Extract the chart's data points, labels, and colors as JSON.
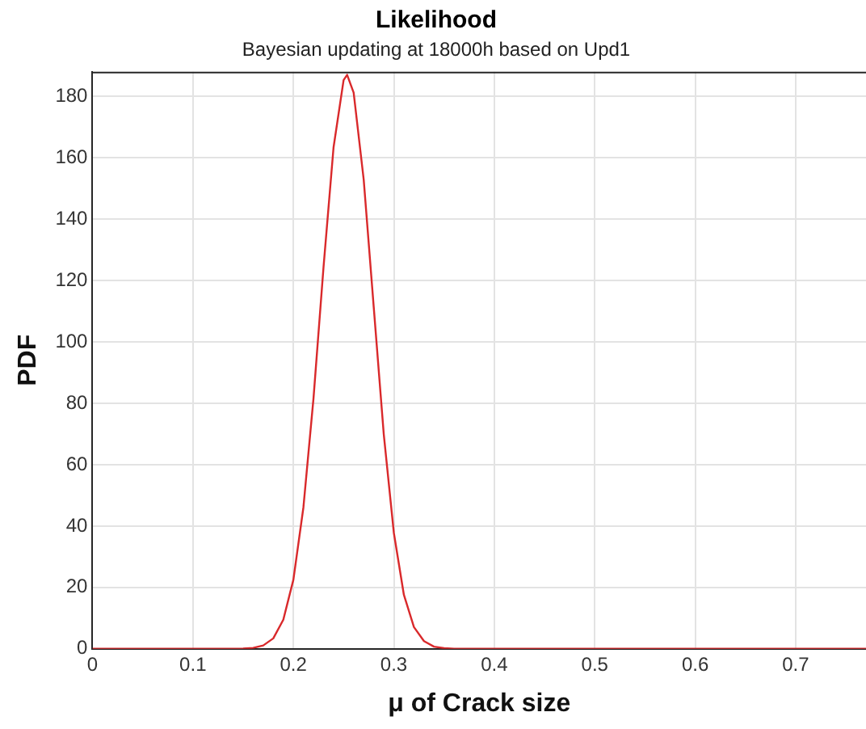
{
  "chart_data": {
    "type": "line",
    "title": "Likelihood",
    "subtitle": "Bayesian updating at 18000h based on Upd1",
    "xlabel": "μ of Crack size",
    "ylabel": "PDF",
    "x": [
      0,
      0.05,
      0.1,
      0.15,
      0.16,
      0.17,
      0.18,
      0.19,
      0.2,
      0.21,
      0.22,
      0.23,
      0.24,
      0.25,
      0.2535,
      0.26,
      0.27,
      0.28,
      0.29,
      0.3,
      0.31,
      0.32,
      0.33,
      0.34,
      0.35,
      0.36,
      0.5,
      0.77
    ],
    "series": [
      {
        "color": "#d9292b",
        "values": [
          0,
          0,
          0,
          0.1,
          0.3,
          1.1,
          3.4,
          9.5,
          22.5,
          46.1,
          81.5,
          124.3,
          163.4,
          185.3,
          187,
          181.2,
          152.9,
          111.3,
          69.8,
          37.8,
          17.6,
          7.1,
          2.5,
          0.7,
          0.2,
          0,
          0,
          0
        ]
      }
    ],
    "xlim": [
      0,
      0.77
    ],
    "xticks": [
      0,
      0.1,
      0.2,
      0.3,
      0.4,
      0.5,
      0.6,
      0.7
    ],
    "ylim": [
      0,
      188
    ],
    "yticks": [
      0,
      20,
      40,
      60,
      80,
      100,
      120,
      140,
      160,
      180
    ],
    "grid": true,
    "marker": "none",
    "line_style": "solid"
  }
}
